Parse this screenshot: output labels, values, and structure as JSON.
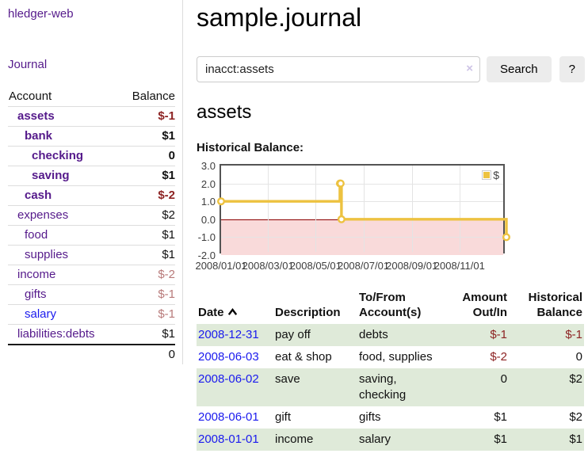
{
  "app": {
    "brand": "hledger-web",
    "nav": {
      "journal": "Journal"
    }
  },
  "sidebar": {
    "header": {
      "account": "Account",
      "balance": "Balance"
    },
    "rows": [
      {
        "name": "assets",
        "balance": "$-1"
      },
      {
        "name": "bank",
        "balance": "$1"
      },
      {
        "name": "checking",
        "balance": "0"
      },
      {
        "name": "saving",
        "balance": "$1"
      },
      {
        "name": "cash",
        "balance": "$-2"
      },
      {
        "name": "expenses",
        "balance": "$2"
      },
      {
        "name": "food",
        "balance": "$1"
      },
      {
        "name": "supplies",
        "balance": "$1"
      },
      {
        "name": "income",
        "balance": "$-2"
      },
      {
        "name": "gifts",
        "balance": "$-1"
      },
      {
        "name": "salary",
        "balance": "$-1"
      },
      {
        "name": "liabilities:debts",
        "balance": "$1"
      }
    ],
    "total": "0"
  },
  "header": {
    "title": "sample.journal"
  },
  "search": {
    "value": "inacct:assets",
    "clear_icon": "×",
    "search_button": "Search",
    "help_button": "?"
  },
  "account_view": {
    "heading": "assets",
    "section_label": "Historical Balance:"
  },
  "chart_data": {
    "type": "line",
    "title": "Historical Balance",
    "step": true,
    "series": [
      {
        "name": "$",
        "color": "#edc240",
        "points": [
          [
            "2008-01-01",
            1
          ],
          [
            "2008-06-01",
            2
          ],
          [
            "2008-06-02",
            2
          ],
          [
            "2008-06-03",
            0
          ],
          [
            "2008-12-31",
            -1
          ]
        ]
      }
    ],
    "x_range": [
      "2008-01-01",
      "2008-12-31"
    ],
    "x_ticks": [
      {
        "date": "2008-01-01",
        "label": "2008/01/01"
      },
      {
        "date": "2008-03-01",
        "label": "2008/03/01"
      },
      {
        "date": "2008-05-01",
        "label": "2008/05/01"
      },
      {
        "date": "2008-07-01",
        "label": "2008/07/01"
      },
      {
        "date": "2008-09-01",
        "label": "2008/09/01"
      },
      {
        "date": "2008-11-01",
        "label": "2008/11/01"
      }
    ],
    "y_ticks": [
      {
        "value": 3,
        "label": "3.0"
      },
      {
        "value": 2,
        "label": "2.0"
      },
      {
        "value": 1,
        "label": "1.0"
      },
      {
        "value": 0,
        "label": "0.0"
      },
      {
        "value": -1,
        "label": "-1.0"
      },
      {
        "value": -2,
        "label": "-2.0"
      }
    ],
    "ylim": [
      -2,
      3
    ],
    "grid": true,
    "legend": {
      "label": "$",
      "position": "top-right"
    },
    "colors": {
      "line": "#edc240",
      "negative_region": "#f9dada",
      "zero_line": "#8b0000",
      "gridline": "#e4e4e4",
      "border": "#545454"
    }
  },
  "register": {
    "columns": {
      "date": "Date",
      "description": "Description",
      "account": "To/From Account(s)",
      "amount": "Amount Out/In",
      "balance": "Historical Balance"
    },
    "rows": [
      {
        "date": "2008-12-31",
        "description": "pay off",
        "accounts": "debts",
        "amount": "$-1",
        "balance": "$-1"
      },
      {
        "date": "2008-06-03",
        "description": "eat & shop",
        "accounts": "food, supplies",
        "amount": "$-2",
        "balance": "0"
      },
      {
        "date": "2008-06-02",
        "description": "save",
        "accounts": "saving, checking",
        "amount": "0",
        "balance": "$2"
      },
      {
        "date": "2008-06-01",
        "description": "gift",
        "accounts": "gifts",
        "amount": "$1",
        "balance": "$2"
      },
      {
        "date": "2008-01-01",
        "description": "income",
        "accounts": "salary",
        "amount": "$1",
        "balance": "$1"
      }
    ]
  }
}
